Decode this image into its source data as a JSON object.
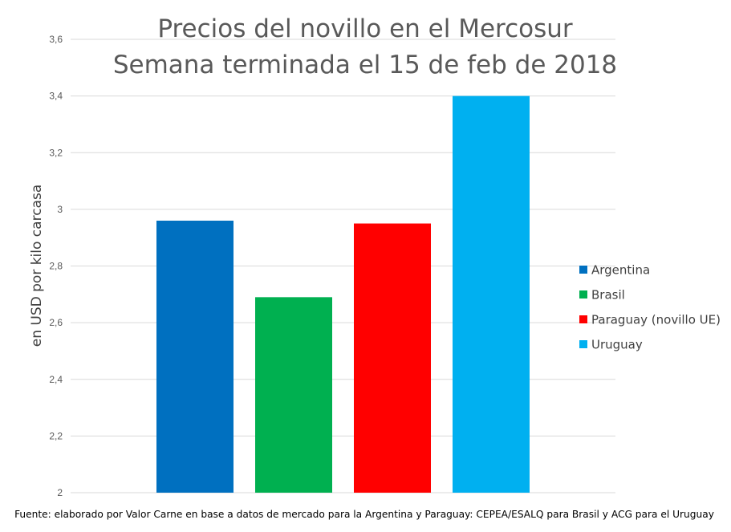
{
  "chart_data": {
    "type": "bar",
    "title": [
      "Precios del novillo en el Mercosur",
      "Semana terminada el 15 de feb de 2018"
    ],
    "ylabel": "en USD por kilo carcasa",
    "xlabel": "",
    "ylim": [
      2,
      3.6
    ],
    "yticks": [
      {
        "value": 2.0,
        "label": "2"
      },
      {
        "value": 2.2,
        "label": "2,2"
      },
      {
        "value": 2.4,
        "label": "2,4"
      },
      {
        "value": 2.6,
        "label": "2,6"
      },
      {
        "value": 2.8,
        "label": "2,8"
      },
      {
        "value": 3.0,
        "label": "3"
      },
      {
        "value": 3.2,
        "label": "3,2"
      },
      {
        "value": 3.4,
        "label": "3,4"
      },
      {
        "value": 3.6,
        "label": "3,6"
      }
    ],
    "grid": true,
    "legend_position": "right",
    "series": [
      {
        "name": "Argentina",
        "value": 2.96,
        "color": "#0070C0"
      },
      {
        "name": "Brasil",
        "value": 2.69,
        "color": "#00B050"
      },
      {
        "name": "Paraguay (novillo UE)",
        "value": 2.95,
        "color": "#FF0000"
      },
      {
        "name": "Uruguay",
        "value": 3.4,
        "color": "#00B0F0"
      }
    ],
    "source": "Fuente: elaborado por Valor Carne en base a datos de mercado para la Argentina y Paraguay: CEPEA/ESALQ para Brasil y ACG para el Uruguay"
  }
}
